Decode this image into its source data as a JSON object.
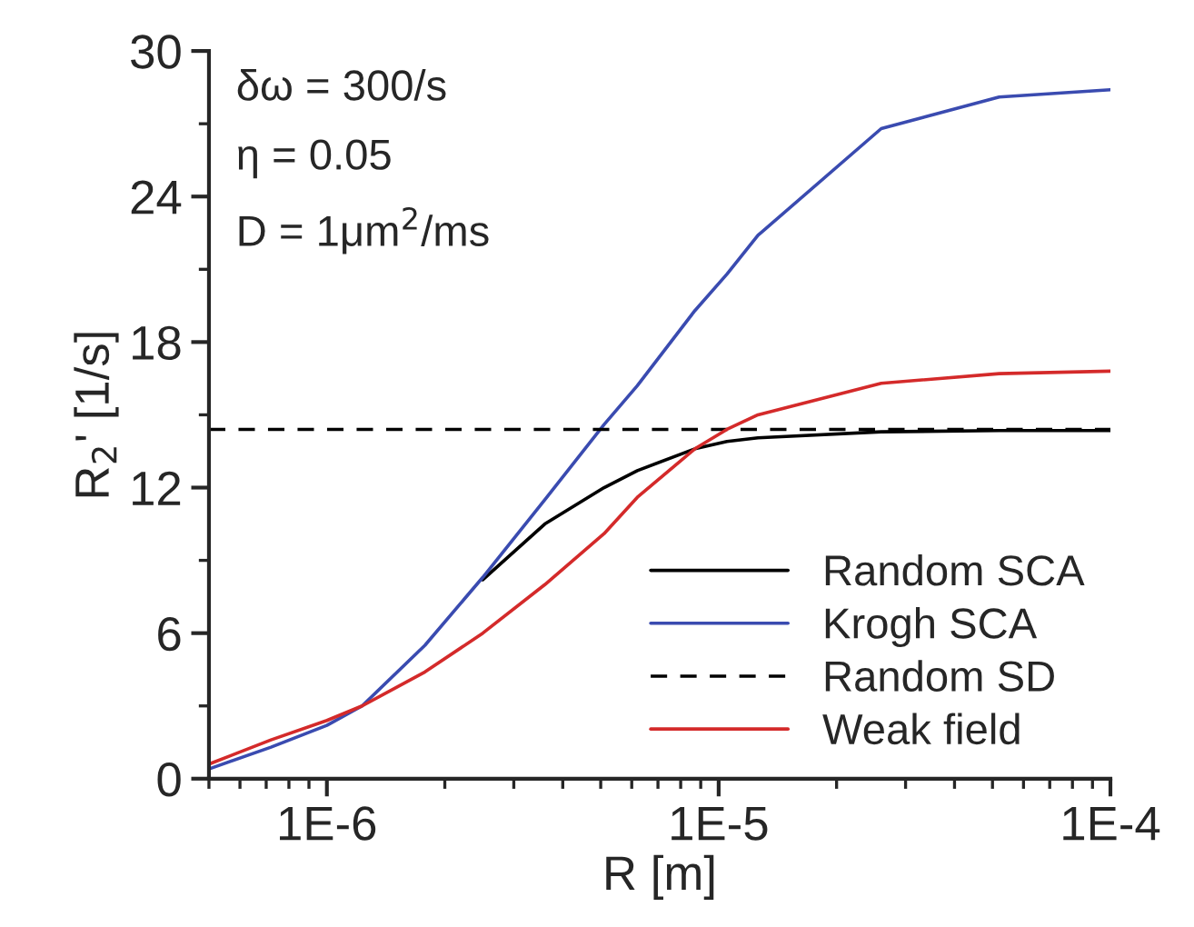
{
  "chart_data": {
    "type": "line",
    "xlabel": "R [m]",
    "ylabel": "R$_{2}$' [1/s]",
    "log": "x",
    "xlim": [
      5e-07,
      0.0001
    ],
    "xticks": [
      {
        "value": 1e-06,
        "label": "1E-6"
      },
      {
        "value": 1e-05,
        "label": "1E-5"
      },
      {
        "value": 0.0001,
        "label": "1E-4"
      }
    ],
    "ylim": [
      0,
      30
    ],
    "yticks": [
      0,
      6,
      12,
      18,
      24,
      30
    ],
    "grid": false,
    "legend": "bottom right",
    "annotations": [
      "δω = 300/s",
      "η = 0.05",
      "D = 1μm$^{2}$/ms"
    ],
    "series": [
      {
        "name": "Random SCA",
        "color": "#000000",
        "line_style": "solid",
        "x": [
          2.5e-06,
          3.6e-06,
          5.1e-06,
          6.2e-06,
          8.7e-06,
          1.05e-05,
          1.26e-05,
          2.6e-05,
          5.2e-05,
          0.0001
        ],
        "values": [
          8.2,
          10.5,
          12.0,
          12.7,
          13.6,
          13.9,
          14.05,
          14.3,
          14.35,
          14.35
        ]
      },
      {
        "name": "Krogh SCA",
        "color": "#3a4bb0",
        "line_style": "solid",
        "x": [
          5e-07,
          7.2e-07,
          1e-06,
          1.23e-06,
          1.78e-06,
          2.5e-06,
          3.6e-06,
          5.1e-06,
          6.2e-06,
          8.7e-06,
          1.05e-05,
          1.26e-05,
          2.6e-05,
          5.2e-05,
          0.0001
        ],
        "values": [
          0.4,
          1.3,
          2.2,
          3.0,
          5.5,
          8.3,
          11.5,
          14.6,
          16.2,
          19.3,
          20.8,
          22.4,
          26.8,
          28.1,
          28.4
        ]
      },
      {
        "name": "Random SD",
        "color": "#000000",
        "line_style": "dashed",
        "x": [
          5e-07,
          0.0001
        ],
        "values": [
          14.4,
          14.4
        ]
      },
      {
        "name": "Weak field",
        "color": "#d42a2a",
        "line_style": "solid",
        "x": [
          5e-07,
          7.2e-07,
          1e-06,
          1.23e-06,
          1.78e-06,
          2.5e-06,
          3.6e-06,
          5.1e-06,
          6.2e-06,
          8.7e-06,
          1.05e-05,
          1.26e-05,
          2.6e-05,
          5.2e-05,
          0.0001
        ],
        "values": [
          0.6,
          1.6,
          2.4,
          3.0,
          4.4,
          6.0,
          8.0,
          10.1,
          11.6,
          13.6,
          14.4,
          15.0,
          16.3,
          16.7,
          16.8
        ]
      }
    ]
  }
}
